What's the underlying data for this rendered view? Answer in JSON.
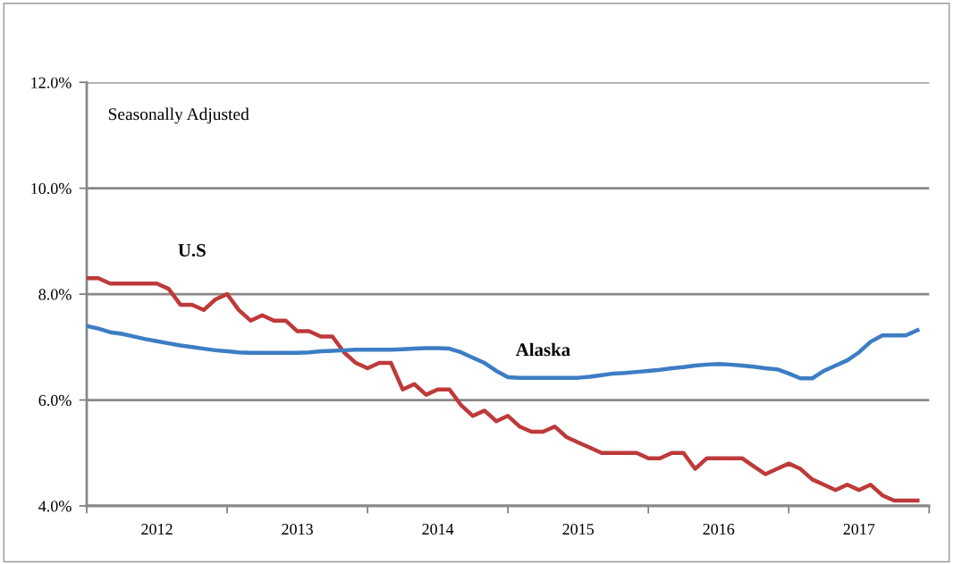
{
  "chart_data": {
    "type": "line",
    "x": [
      2012.0,
      2012.083,
      2012.167,
      2012.25,
      2012.333,
      2012.417,
      2012.5,
      2012.583,
      2012.667,
      2012.75,
      2012.833,
      2012.917,
      2013.0,
      2013.083,
      2013.167,
      2013.25,
      2013.333,
      2013.417,
      2013.5,
      2013.583,
      2013.667,
      2013.75,
      2013.833,
      2013.917,
      2014.0,
      2014.083,
      2014.167,
      2014.25,
      2014.333,
      2014.417,
      2014.5,
      2014.583,
      2014.667,
      2014.75,
      2014.833,
      2014.917,
      2015.0,
      2015.083,
      2015.167,
      2015.25,
      2015.333,
      2015.417,
      2015.5,
      2015.583,
      2015.667,
      2015.75,
      2015.833,
      2015.917,
      2016.0,
      2016.083,
      2016.167,
      2016.25,
      2016.333,
      2016.417,
      2016.5,
      2016.583,
      2016.667,
      2016.75,
      2016.833,
      2016.917,
      2017.0,
      2017.083,
      2017.167,
      2017.25,
      2017.333,
      2017.417,
      2017.5,
      2017.583,
      2017.667,
      2017.75,
      2017.833,
      2017.917
    ],
    "series": [
      {
        "name": "U.S",
        "color": "#be3a3a",
        "values": [
          8.3,
          8.3,
          8.2,
          8.2,
          8.2,
          8.2,
          8.2,
          8.1,
          7.8,
          7.8,
          7.7,
          7.9,
          8.0,
          7.7,
          7.5,
          7.6,
          7.5,
          7.5,
          7.3,
          7.3,
          7.2,
          7.2,
          6.9,
          6.7,
          6.6,
          6.7,
          6.7,
          6.2,
          6.3,
          6.1,
          6.2,
          6.2,
          5.9,
          5.7,
          5.8,
          5.6,
          5.7,
          5.5,
          5.4,
          5.4,
          5.5,
          5.3,
          5.2,
          5.1,
          5.0,
          5.0,
          5.0,
          5.0,
          4.9,
          4.9,
          5.0,
          5.0,
          4.7,
          4.9,
          4.9,
          4.9,
          4.9,
          4.75,
          4.6,
          4.7,
          4.8,
          4.7,
          4.5,
          4.4,
          4.3,
          4.4,
          4.3,
          4.4,
          4.2,
          4.1,
          4.1,
          4.1
        ]
      },
      {
        "name": "Alaska",
        "color": "#3c7dc4",
        "values": [
          7.4,
          7.35,
          7.28,
          7.25,
          7.2,
          7.15,
          7.11,
          7.07,
          7.03,
          7.0,
          6.97,
          6.94,
          6.92,
          6.9,
          6.89,
          6.89,
          6.89,
          6.89,
          6.89,
          6.9,
          6.92,
          6.93,
          6.94,
          6.95,
          6.95,
          6.95,
          6.95,
          6.96,
          6.97,
          6.98,
          6.98,
          6.97,
          6.9,
          6.8,
          6.7,
          6.55,
          6.43,
          6.42,
          6.42,
          6.42,
          6.42,
          6.42,
          6.42,
          6.44,
          6.47,
          6.5,
          6.51,
          6.53,
          6.55,
          6.57,
          6.6,
          6.62,
          6.65,
          6.67,
          6.68,
          6.67,
          6.65,
          6.63,
          6.6,
          6.58,
          6.5,
          6.41,
          6.41,
          6.55,
          6.65,
          6.75,
          6.9,
          7.1,
          7.22,
          7.22,
          7.22,
          7.32
        ]
      }
    ],
    "annotations": [
      "Seasonally Adjusted"
    ],
    "xlim": [
      2012,
      2018
    ],
    "xticks": [
      {
        "value": 2012,
        "label": null
      },
      {
        "value": 2013,
        "label": null
      },
      {
        "value": 2014,
        "label": null
      },
      {
        "value": 2015,
        "label": null
      },
      {
        "value": 2016,
        "label": null
      },
      {
        "value": 2017,
        "label": null
      },
      {
        "value": 2018,
        "label": null
      },
      {
        "value": 2012.5,
        "label": "2012"
      },
      {
        "value": 2013.5,
        "label": "2013"
      },
      {
        "value": 2014.5,
        "label": "2014"
      },
      {
        "value": 2015.5,
        "label": "2015"
      },
      {
        "value": 2016.5,
        "label": "2016"
      },
      {
        "value": 2017.5,
        "label": "2017"
      }
    ],
    "ylim": [
      4,
      12
    ],
    "yticks": [
      {
        "value": 4,
        "label": "4.0%"
      },
      {
        "value": 6,
        "label": "6.0%"
      },
      {
        "value": 8,
        "label": "8.0%"
      },
      {
        "value": 10,
        "label": "10.0%"
      },
      {
        "value": 12,
        "label": "12.0%"
      }
    ],
    "grid": "y",
    "line_style": "solid"
  }
}
